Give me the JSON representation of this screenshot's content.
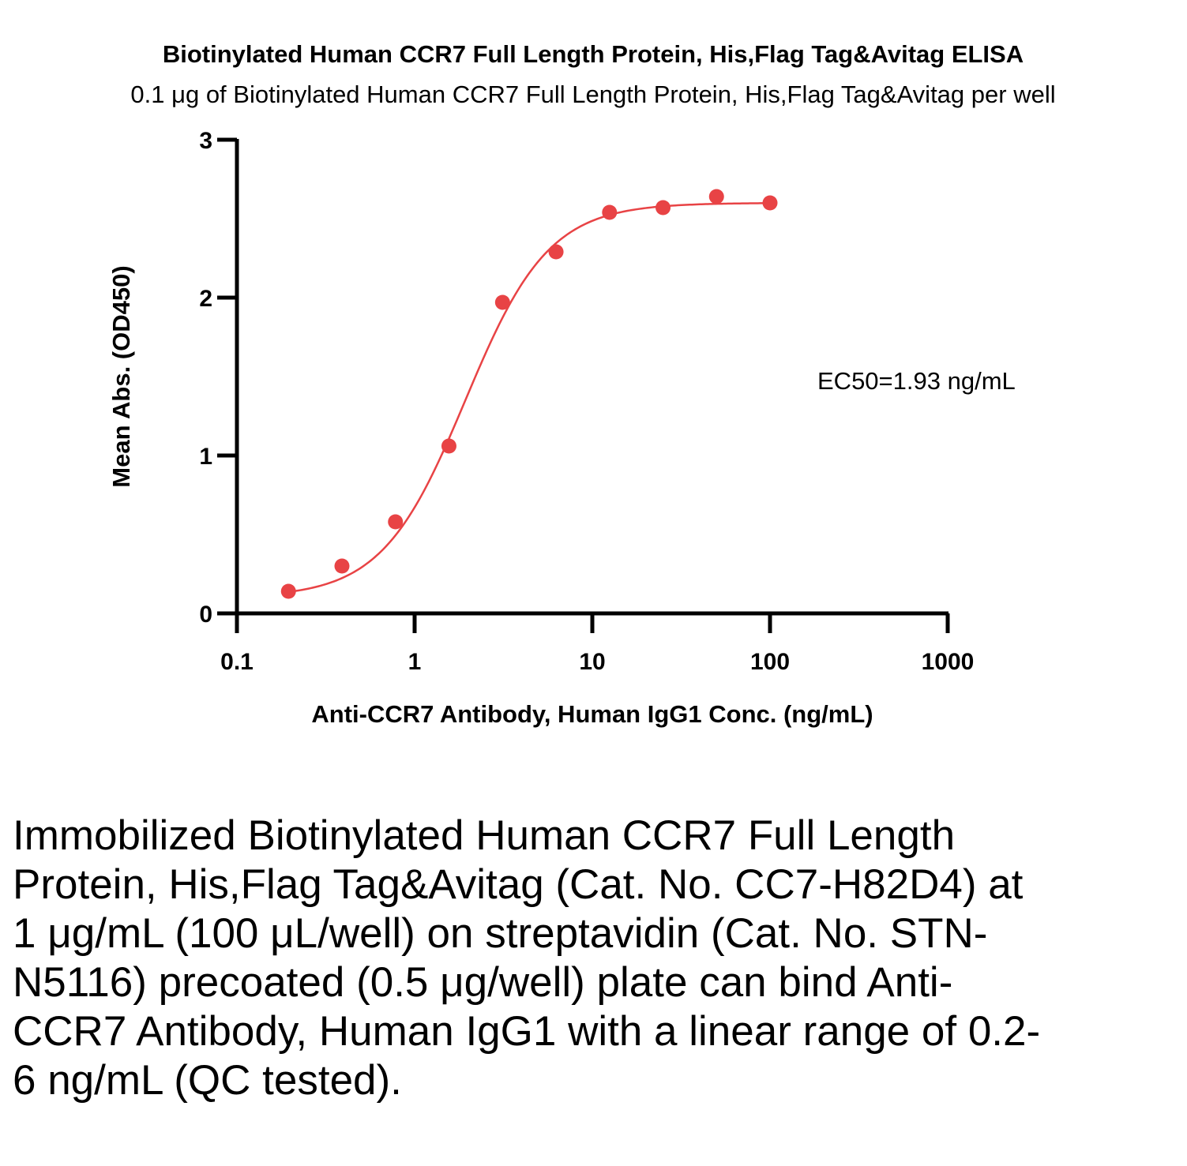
{
  "chart_data": {
    "type": "scatter",
    "title": "Biotinylated Human CCR7 Full Length Protein, His,Flag Tag&Avitag ELISA",
    "subtitle": "0.1 μg of Biotinylated Human CCR7 Full Length Protein, His,Flag Tag&Avitag per well",
    "xlabel": "Anti-CCR7 Antibody, Human IgG1 Conc. (ng/mL)",
    "ylabel": "Mean Abs. (OD450)",
    "xscale": "log",
    "xlim": [
      0.1,
      1000
    ],
    "ylim": [
      0,
      3
    ],
    "xticks": [
      "0.1",
      "1",
      "10",
      "100",
      "1000"
    ],
    "yticks": [
      "0",
      "1",
      "2",
      "3"
    ],
    "grid": false,
    "color": "#e84345",
    "series": [
      {
        "x": [
          0.195,
          0.39,
          0.78,
          1.56,
          3.125,
          6.25,
          12.5,
          25,
          50,
          100
        ],
        "y": [
          0.14,
          0.3,
          0.58,
          1.06,
          1.97,
          2.29,
          2.54,
          2.57,
          2.64,
          2.6
        ]
      }
    ],
    "fit": {
      "model": "4PL",
      "bottom": 0.1,
      "top": 2.6,
      "ec50": 1.93,
      "hill": 1.85
    },
    "annotation": "EC50=1.93 ng/mL"
  },
  "caption": "Immobilized Biotinylated Human CCR7 Full Length Protein, His,Flag Tag&Avitag (Cat. No. CC7-H82D4) at 1 μg/mL (100 μL/well) on streptavidin (Cat. No. STN-N5116) precoated (0.5 μg/well) plate can bind Anti-CCR7 Antibody, Human IgG1 with a linear range of 0.2-6 ng/mL (QC tested)."
}
